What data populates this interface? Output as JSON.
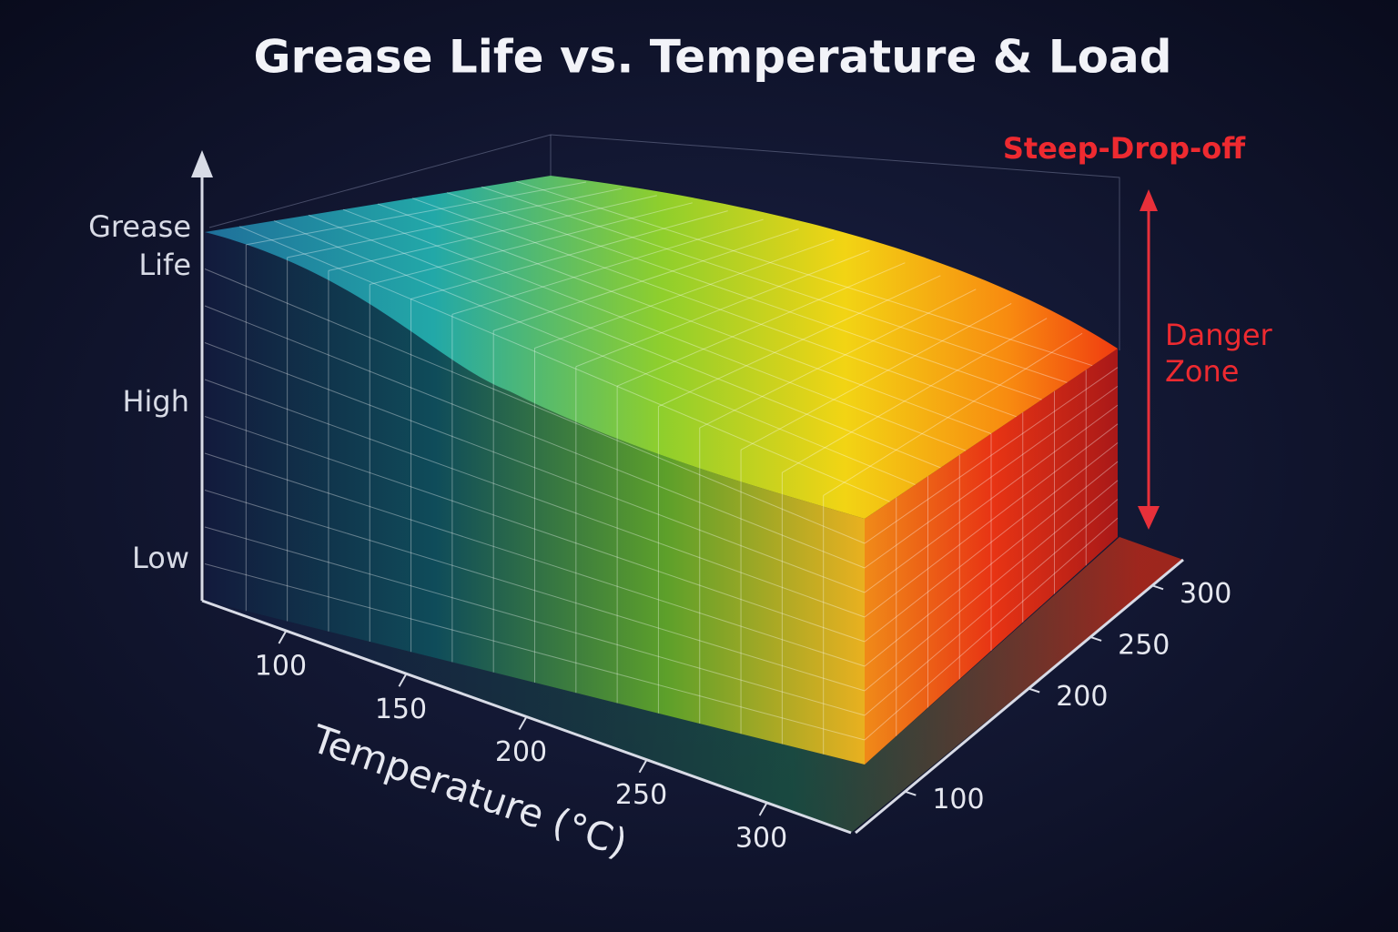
{
  "chart_data": {
    "type": "surface",
    "title": "Grease Life vs. Temperature & Load",
    "xlabel": "Temperature (°C)",
    "zlabel": "Grease Life",
    "xticks": [
      100,
      150,
      200,
      250,
      300
    ],
    "xlim": [
      65,
      335
    ],
    "yticks": [
      100,
      200,
      250,
      300
    ],
    "ylim": [
      60,
      325
    ],
    "z_categories": [
      "Low",
      "High"
    ],
    "annotations": [
      "Steep-Drop-off",
      "Danger Zone"
    ]
  }
}
